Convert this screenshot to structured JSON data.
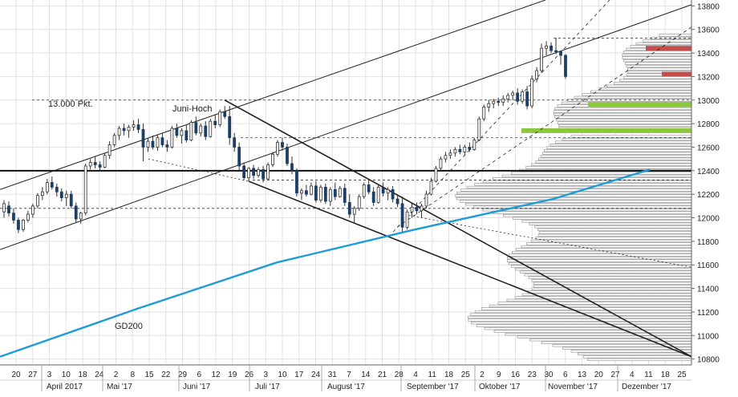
{
  "chart_data": {
    "type": "candlestick",
    "title": "",
    "ylim": [
      10750,
      13850
    ],
    "y_ticks": [
      10800,
      11000,
      11200,
      11400,
      11600,
      11800,
      12000,
      12200,
      12400,
      12600,
      12800,
      13000,
      13200,
      13400,
      13600,
      13800
    ],
    "x_day_labels": [
      "20",
      "27",
      "3",
      "10",
      "18",
      "24",
      "2",
      "8",
      "15",
      "22",
      "29",
      "6",
      "12",
      "19",
      "26",
      "3",
      "10",
      "17",
      "24",
      "31",
      "7",
      "14",
      "21",
      "28",
      "4",
      "11",
      "18",
      "25",
      "2",
      "9",
      "16",
      "23",
      "30",
      "6",
      "13",
      "20",
      "27",
      "4",
      "11",
      "18",
      "25"
    ],
    "x_month_labels": [
      "April 2017",
      "Mai '17",
      "Juni '17",
      "Juli '17",
      "August '17",
      "September '17",
      "Oktober '17",
      "November '17",
      "Dezember '17"
    ],
    "grid": true,
    "annotations": {
      "level_label": "13.000 Pkt.",
      "peak_label": "Juni-Hoch",
      "ma_label": "GD200"
    },
    "horizontal_levels": [
      {
        "value": 13000,
        "style": "dashed"
      },
      {
        "value": 12400,
        "style": "solid-bold"
      },
      {
        "value": 12680,
        "style": "dashed"
      },
      {
        "value": 12320,
        "style": "dashed"
      },
      {
        "value": 12080,
        "style": "dashed"
      },
      {
        "value": 13525,
        "style": "dashed"
      }
    ],
    "resistance_zones": [
      13440,
      13220
    ],
    "support_zones": [
      12960,
      12740
    ],
    "series": [
      {
        "type": "ohlc",
        "values": [
          {
            "o": 12050,
            "h": 12150,
            "l": 12000,
            "c": 12120
          },
          {
            "o": 12100,
            "h": 12140,
            "l": 12010,
            "c": 12040
          },
          {
            "o": 12040,
            "h": 12080,
            "l": 11950,
            "c": 11980
          },
          {
            "o": 11980,
            "h": 12000,
            "l": 11870,
            "c": 11900
          },
          {
            "o": 11900,
            "h": 11990,
            "l": 11880,
            "c": 11980
          },
          {
            "o": 11980,
            "h": 12060,
            "l": 11960,
            "c": 12030
          },
          {
            "o": 12030,
            "h": 12120,
            "l": 12000,
            "c": 12100
          },
          {
            "o": 12100,
            "h": 12210,
            "l": 12080,
            "c": 12190
          },
          {
            "o": 12190,
            "h": 12260,
            "l": 12150,
            "c": 12220
          },
          {
            "o": 12220,
            "h": 12330,
            "l": 12200,
            "c": 12300
          },
          {
            "o": 12300,
            "h": 12350,
            "l": 12240,
            "c": 12260
          },
          {
            "o": 12260,
            "h": 12290,
            "l": 12180,
            "c": 12220
          },
          {
            "o": 12220,
            "h": 12250,
            "l": 12140,
            "c": 12170
          },
          {
            "o": 12170,
            "h": 12230,
            "l": 12100,
            "c": 12200
          },
          {
            "o": 12200,
            "h": 12230,
            "l": 12080,
            "c": 12100
          },
          {
            "o": 12100,
            "h": 12130,
            "l": 11960,
            "c": 11990
          },
          {
            "o": 11990,
            "h": 12050,
            "l": 11950,
            "c": 12040
          },
          {
            "o": 12040,
            "h": 12460,
            "l": 12020,
            "c": 12440
          },
          {
            "o": 12440,
            "h": 12500,
            "l": 12410,
            "c": 12470
          },
          {
            "o": 12470,
            "h": 12520,
            "l": 12420,
            "c": 12450
          },
          {
            "o": 12450,
            "h": 12480,
            "l": 12400,
            "c": 12430
          },
          {
            "o": 12430,
            "h": 12550,
            "l": 12420,
            "c": 12530
          },
          {
            "o": 12530,
            "h": 12650,
            "l": 12500,
            "c": 12620
          },
          {
            "o": 12620,
            "h": 12720,
            "l": 12600,
            "c": 12700
          },
          {
            "o": 12700,
            "h": 12780,
            "l": 12660,
            "c": 12760
          },
          {
            "o": 12760,
            "h": 12800,
            "l": 12700,
            "c": 12740
          },
          {
            "o": 12740,
            "h": 12790,
            "l": 12680,
            "c": 12770
          },
          {
            "o": 12770,
            "h": 12830,
            "l": 12740,
            "c": 12790
          },
          {
            "o": 12790,
            "h": 12840,
            "l": 12720,
            "c": 12750
          },
          {
            "o": 12750,
            "h": 12800,
            "l": 12480,
            "c": 12600
          },
          {
            "o": 12600,
            "h": 12680,
            "l": 12560,
            "c": 12650
          },
          {
            "o": 12650,
            "h": 12700,
            "l": 12580,
            "c": 12600
          },
          {
            "o": 12600,
            "h": 12700,
            "l": 12570,
            "c": 12680
          },
          {
            "o": 12680,
            "h": 12720,
            "l": 12600,
            "c": 12620
          },
          {
            "o": 12620,
            "h": 12660,
            "l": 12560,
            "c": 12600
          },
          {
            "o": 12600,
            "h": 12780,
            "l": 12590,
            "c": 12760
          },
          {
            "o": 12760,
            "h": 12800,
            "l": 12680,
            "c": 12700
          },
          {
            "o": 12700,
            "h": 12760,
            "l": 12630,
            "c": 12740
          },
          {
            "o": 12740,
            "h": 12790,
            "l": 12640,
            "c": 12660
          },
          {
            "o": 12660,
            "h": 12830,
            "l": 12650,
            "c": 12810
          },
          {
            "o": 12810,
            "h": 12860,
            "l": 12700,
            "c": 12720
          },
          {
            "o": 12720,
            "h": 12800,
            "l": 12690,
            "c": 12780
          },
          {
            "o": 12780,
            "h": 12820,
            "l": 12660,
            "c": 12690
          },
          {
            "o": 12690,
            "h": 12840,
            "l": 12680,
            "c": 12820
          },
          {
            "o": 12820,
            "h": 12880,
            "l": 12760,
            "c": 12790
          },
          {
            "o": 12790,
            "h": 12920,
            "l": 12770,
            "c": 12900
          },
          {
            "o": 12900,
            "h": 12950,
            "l": 12840,
            "c": 12860
          },
          {
            "o": 12860,
            "h": 12950,
            "l": 12620,
            "c": 12680
          },
          {
            "o": 12680,
            "h": 12720,
            "l": 12560,
            "c": 12600
          },
          {
            "o": 12600,
            "h": 12640,
            "l": 12400,
            "c": 12440
          },
          {
            "o": 12440,
            "h": 12470,
            "l": 12320,
            "c": 12340
          },
          {
            "o": 12340,
            "h": 12430,
            "l": 12310,
            "c": 12420
          },
          {
            "o": 12420,
            "h": 12450,
            "l": 12330,
            "c": 12360
          },
          {
            "o": 12360,
            "h": 12430,
            "l": 12340,
            "c": 12410
          },
          {
            "o": 12410,
            "h": 12440,
            "l": 12300,
            "c": 12330
          },
          {
            "o": 12330,
            "h": 12470,
            "l": 12320,
            "c": 12450
          },
          {
            "o": 12450,
            "h": 12560,
            "l": 12430,
            "c": 12540
          },
          {
            "o": 12540,
            "h": 12660,
            "l": 12520,
            "c": 12640
          },
          {
            "o": 12640,
            "h": 12680,
            "l": 12570,
            "c": 12600
          },
          {
            "o": 12600,
            "h": 12630,
            "l": 12440,
            "c": 12460
          },
          {
            "o": 12460,
            "h": 12520,
            "l": 12370,
            "c": 12400
          },
          {
            "o": 12400,
            "h": 12420,
            "l": 12180,
            "c": 12210
          },
          {
            "o": 12210,
            "h": 12250,
            "l": 12150,
            "c": 12230
          },
          {
            "o": 12230,
            "h": 12280,
            "l": 12180,
            "c": 12200
          },
          {
            "o": 12200,
            "h": 12300,
            "l": 12190,
            "c": 12270
          },
          {
            "o": 12270,
            "h": 12310,
            "l": 12130,
            "c": 12150
          },
          {
            "o": 12150,
            "h": 12280,
            "l": 12130,
            "c": 12260
          },
          {
            "o": 12260,
            "h": 12290,
            "l": 12120,
            "c": 12140
          },
          {
            "o": 12140,
            "h": 12260,
            "l": 12100,
            "c": 12240
          },
          {
            "o": 12240,
            "h": 12300,
            "l": 12150,
            "c": 12180
          },
          {
            "o": 12180,
            "h": 12270,
            "l": 12170,
            "c": 12250
          },
          {
            "o": 12250,
            "h": 12290,
            "l": 12100,
            "c": 12130
          },
          {
            "o": 12130,
            "h": 12200,
            "l": 12000,
            "c": 12030
          },
          {
            "o": 12030,
            "h": 12100,
            "l": 11960,
            "c": 12080
          },
          {
            "o": 12080,
            "h": 12200,
            "l": 12060,
            "c": 12180
          },
          {
            "o": 12180,
            "h": 12300,
            "l": 12160,
            "c": 12280
          },
          {
            "o": 12280,
            "h": 12320,
            "l": 12200,
            "c": 12220
          },
          {
            "o": 12220,
            "h": 12260,
            "l": 12100,
            "c": 12130
          },
          {
            "o": 12130,
            "h": 12280,
            "l": 12120,
            "c": 12260
          },
          {
            "o": 12260,
            "h": 12300,
            "l": 12180,
            "c": 12210
          },
          {
            "o": 12210,
            "h": 12260,
            "l": 12150,
            "c": 12240
          },
          {
            "o": 12240,
            "h": 12270,
            "l": 12130,
            "c": 12160
          },
          {
            "o": 12160,
            "h": 12200,
            "l": 12090,
            "c": 12120
          },
          {
            "o": 12120,
            "h": 12180,
            "l": 11880,
            "c": 11920
          },
          {
            "o": 11920,
            "h": 12070,
            "l": 11900,
            "c": 12050
          },
          {
            "o": 12050,
            "h": 12120,
            "l": 12000,
            "c": 12090
          },
          {
            "o": 12090,
            "h": 12130,
            "l": 12030,
            "c": 12060
          },
          {
            "o": 12060,
            "h": 12120,
            "l": 12000,
            "c": 12100
          },
          {
            "o": 12100,
            "h": 12230,
            "l": 12080,
            "c": 12200
          },
          {
            "o": 12200,
            "h": 12340,
            "l": 12190,
            "c": 12310
          },
          {
            "o": 12310,
            "h": 12440,
            "l": 12300,
            "c": 12420
          },
          {
            "o": 12420,
            "h": 12520,
            "l": 12400,
            "c": 12500
          },
          {
            "o": 12500,
            "h": 12560,
            "l": 12470,
            "c": 12530
          },
          {
            "o": 12530,
            "h": 12580,
            "l": 12500,
            "c": 12550
          },
          {
            "o": 12550,
            "h": 12600,
            "l": 12520,
            "c": 12580
          },
          {
            "o": 12580,
            "h": 12620,
            "l": 12540,
            "c": 12560
          },
          {
            "o": 12560,
            "h": 12620,
            "l": 12530,
            "c": 12600
          },
          {
            "o": 12600,
            "h": 12640,
            "l": 12560,
            "c": 12580
          },
          {
            "o": 12580,
            "h": 12680,
            "l": 12570,
            "c": 12660
          },
          {
            "o": 12660,
            "h": 12860,
            "l": 12650,
            "c": 12840
          },
          {
            "o": 12840,
            "h": 12960,
            "l": 12820,
            "c": 12940
          },
          {
            "o": 12940,
            "h": 13000,
            "l": 12900,
            "c": 12970
          },
          {
            "o": 12970,
            "h": 13010,
            "l": 12930,
            "c": 12990
          },
          {
            "o": 12990,
            "h": 13020,
            "l": 12950,
            "c": 12980
          },
          {
            "o": 12980,
            "h": 13040,
            "l": 12950,
            "c": 13010
          },
          {
            "o": 13010,
            "h": 13060,
            "l": 12980,
            "c": 13040
          },
          {
            "o": 13040,
            "h": 13080,
            "l": 13000,
            "c": 13060
          },
          {
            "o": 13060,
            "h": 13100,
            "l": 12960,
            "c": 12990
          },
          {
            "o": 12990,
            "h": 13090,
            "l": 12970,
            "c": 13070
          },
          {
            "o": 13070,
            "h": 13120,
            "l": 12920,
            "c": 12950
          },
          {
            "o": 12950,
            "h": 13210,
            "l": 12930,
            "c": 13180
          },
          {
            "o": 13180,
            "h": 13280,
            "l": 13150,
            "c": 13250
          },
          {
            "o": 13250,
            "h": 13480,
            "l": 13230,
            "c": 13440
          },
          {
            "o": 13440,
            "h": 13500,
            "l": 13380,
            "c": 13460
          },
          {
            "o": 13460,
            "h": 13490,
            "l": 13400,
            "c": 13420
          },
          {
            "o": 13420,
            "h": 13530,
            "l": 13390,
            "c": 13410
          },
          {
            "o": 13410,
            "h": 13420,
            "l": 13300,
            "c": 13380
          },
          {
            "o": 13380,
            "h": 13390,
            "l": 13180,
            "c": 13200
          }
        ]
      },
      {
        "name": "GD200",
        "type": "line",
        "x": [
          0,
          0.2,
          0.4,
          0.6,
          0.8,
          0.94
        ],
        "values": [
          10820,
          11230,
          11620,
          11900,
          12160,
          12410
        ]
      }
    ]
  }
}
